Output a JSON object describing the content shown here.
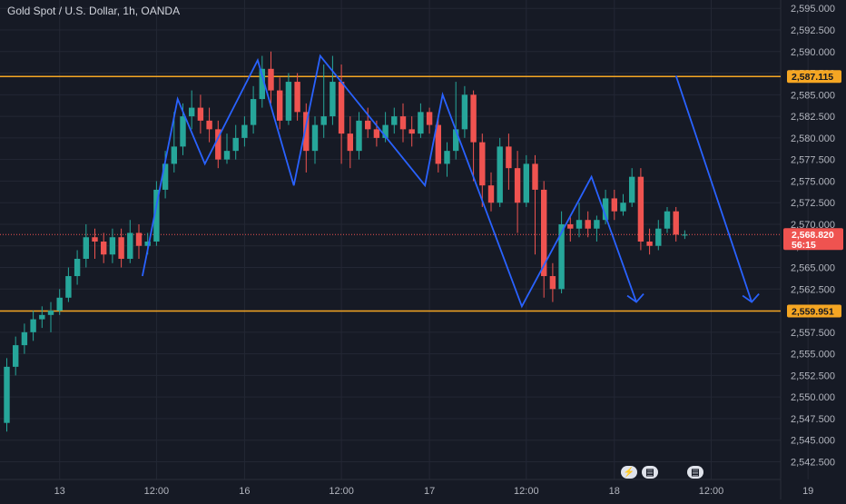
{
  "header": {
    "title": "Gold Spot / U.S. Dollar, 1h, OANDA"
  },
  "colors": {
    "background": "#161a25",
    "grid": "#232734",
    "bull": "#26a69a",
    "bear": "#ef5350",
    "level_line": "#f5a623",
    "pattern": "#2962ff",
    "axis_text": "#b2b5be"
  },
  "chart_data": {
    "type": "candlestick",
    "title": "Gold Spot / U.S. Dollar, 1h, OANDA",
    "ylim": [
      2541.5,
      2595
    ],
    "y_ticks": [
      "2,542.500",
      "2,545.000",
      "2,547.500",
      "2,550.000",
      "2,552.500",
      "2,555.000",
      "2,557.500",
      "2,560.000",
      "2,562.500",
      "2,565.000",
      "2,567.500",
      "2,570.000",
      "2,572.500",
      "2,575.000",
      "2,577.500",
      "2,580.000",
      "2,582.500",
      "2,585.000",
      "2,587.500",
      "2,590.000",
      "2,592.500",
      "2,595.000"
    ],
    "x_ticks": [
      {
        "label": "13",
        "bar": 6
      },
      {
        "label": "12:00",
        "bar": 17
      },
      {
        "label": "16",
        "bar": 27
      },
      {
        "label": "12:00",
        "bar": 38
      },
      {
        "label": "17",
        "bar": 48
      },
      {
        "label": "12:00",
        "bar": 59
      },
      {
        "label": "18",
        "bar": 69
      },
      {
        "label": "12:00",
        "bar": 80
      },
      {
        "label": "19",
        "bar": 91
      }
    ],
    "horizontal_levels": [
      {
        "value": 2587.115,
        "label": "2,587.115"
      },
      {
        "value": 2559.951,
        "label": "2,559.951"
      }
    ],
    "current_price": {
      "value": 2568.82,
      "label": "2,568.820",
      "countdown": "56:15"
    },
    "candles": [
      [
        2547.0,
        2553.5,
        2546.0,
        2554.5
      ],
      [
        2553.5,
        2556.0,
        2552.5,
        2557.0
      ],
      [
        2556.0,
        2557.5,
        2555.0,
        2558.5
      ],
      [
        2557.5,
        2559.0,
        2556.5,
        2560.0
      ],
      [
        2559.0,
        2559.5,
        2558.0,
        2560.5
      ],
      [
        2559.5,
        2560.0,
        2557.5,
        2561.0
      ],
      [
        2560.0,
        2561.5,
        2559.5,
        2562.5
      ],
      [
        2561.5,
        2564.0,
        2561.0,
        2565.0
      ],
      [
        2564.0,
        2566.0,
        2563.0,
        2567.0
      ],
      [
        2566.0,
        2568.5,
        2565.0,
        2570.0
      ],
      [
        2568.5,
        2568.0,
        2566.0,
        2569.5
      ],
      [
        2568.0,
        2566.5,
        2565.5,
        2569.0
      ],
      [
        2566.5,
        2568.5,
        2565.5,
        2569.5
      ],
      [
        2568.5,
        2566.0,
        2565.0,
        2569.5
      ],
      [
        2566.0,
        2569.0,
        2565.5,
        2570.5
      ],
      [
        2569.0,
        2567.5,
        2566.0,
        2570.0
      ],
      [
        2567.5,
        2568.0,
        2566.5,
        2569.0
      ],
      [
        2568.0,
        2574.0,
        2567.5,
        2575.0
      ],
      [
        2574.0,
        2577.0,
        2573.0,
        2578.5
      ],
      [
        2577.0,
        2579.0,
        2576.0,
        2583.0
      ],
      [
        2579.0,
        2582.5,
        2578.0,
        2584.0
      ],
      [
        2582.5,
        2583.5,
        2581.0,
        2585.5
      ],
      [
        2583.5,
        2582.0,
        2580.5,
        2585.0
      ],
      [
        2582.0,
        2581.0,
        2579.5,
        2583.5
      ],
      [
        2581.0,
        2577.5,
        2576.5,
        2582.0
      ],
      [
        2577.5,
        2578.5,
        2577.0,
        2580.5
      ],
      [
        2578.5,
        2580.0,
        2577.5,
        2581.5
      ],
      [
        2580.0,
        2581.5,
        2579.0,
        2582.5
      ],
      [
        2581.5,
        2584.5,
        2580.5,
        2586.0
      ],
      [
        2584.5,
        2588.0,
        2583.5,
        2589.5
      ],
      [
        2588.0,
        2585.5,
        2584.0,
        2590.0
      ],
      [
        2585.5,
        2582.0,
        2581.0,
        2587.0
      ],
      [
        2582.0,
        2586.5,
        2581.5,
        2587.5
      ],
      [
        2586.5,
        2583.0,
        2582.0,
        2587.5
      ],
      [
        2583.0,
        2578.5,
        2576.0,
        2584.0
      ],
      [
        2578.5,
        2581.5,
        2577.0,
        2582.5
      ],
      [
        2581.5,
        2582.5,
        2580.0,
        2588.5
      ],
      [
        2582.5,
        2586.5,
        2581.5,
        2589.5
      ],
      [
        2586.5,
        2580.5,
        2577.0,
        2588.5
      ],
      [
        2580.5,
        2578.5,
        2576.5,
        2582.5
      ],
      [
        2578.5,
        2582.0,
        2577.5,
        2583.0
      ],
      [
        2582.0,
        2581.0,
        2580.0,
        2583.5
      ],
      [
        2581.0,
        2580.0,
        2579.0,
        2582.0
      ],
      [
        2580.0,
        2581.5,
        2579.5,
        2583.0
      ],
      [
        2581.5,
        2582.5,
        2580.5,
        2583.5
      ],
      [
        2582.5,
        2581.0,
        2579.5,
        2584.0
      ],
      [
        2581.0,
        2580.5,
        2579.0,
        2582.5
      ],
      [
        2580.5,
        2583.0,
        2580.0,
        2584.0
      ],
      [
        2583.0,
        2581.5,
        2580.5,
        2583.5
      ],
      [
        2581.5,
        2577.0,
        2576.0,
        2582.5
      ],
      [
        2577.0,
        2578.5,
        2575.5,
        2579.5
      ],
      [
        2578.5,
        2581.0,
        2577.5,
        2586.5
      ],
      [
        2581.0,
        2585.0,
        2580.0,
        2586.0
      ],
      [
        2585.0,
        2579.5,
        2575.0,
        2585.5
      ],
      [
        2579.5,
        2574.5,
        2572.0,
        2580.5
      ],
      [
        2574.5,
        2572.5,
        2571.5,
        2576.0
      ],
      [
        2572.5,
        2579.0,
        2572.0,
        2580.0
      ],
      [
        2579.0,
        2576.5,
        2574.0,
        2580.5
      ],
      [
        2576.5,
        2572.5,
        2569.0,
        2578.5
      ],
      [
        2572.5,
        2577.0,
        2572.0,
        2578.0
      ],
      [
        2577.0,
        2574.0,
        2566.5,
        2578.0
      ],
      [
        2574.0,
        2564.0,
        2561.5,
        2575.0
      ],
      [
        2564.0,
        2562.5,
        2561.0,
        2565.5
      ],
      [
        2562.5,
        2570.0,
        2562.0,
        2571.5
      ],
      [
        2570.0,
        2569.5,
        2568.0,
        2571.0
      ],
      [
        2569.5,
        2570.5,
        2568.5,
        2572.5
      ],
      [
        2570.5,
        2569.5,
        2568.5,
        2571.5
      ],
      [
        2569.5,
        2570.5,
        2568.0,
        2571.0
      ],
      [
        2570.5,
        2573.0,
        2570.0,
        2574.0
      ],
      [
        2573.0,
        2571.5,
        2570.5,
        2574.0
      ],
      [
        2571.5,
        2572.5,
        2571.0,
        2573.5
      ],
      [
        2572.5,
        2575.5,
        2572.0,
        2576.5
      ],
      [
        2575.5,
        2568.0,
        2567.0,
        2576.5
      ],
      [
        2568.0,
        2567.5,
        2566.5,
        2569.5
      ],
      [
        2567.5,
        2569.5,
        2567.0,
        2570.5
      ],
      [
        2569.5,
        2571.5,
        2569.0,
        2572.0
      ],
      [
        2571.5,
        2568.8,
        2568.0,
        2572.0
      ],
      [
        2568.8,
        2568.8,
        2568.3,
        2569.3
      ]
    ],
    "pattern_lines": [
      [
        [
          15.4,
          2564.0
        ],
        [
          19.4,
          2584.5
        ],
        [
          22.5,
          2577.0
        ],
        [
          28.5,
          2589.0
        ],
        [
          32.6,
          2574.5
        ],
        [
          35.6,
          2589.5
        ],
        [
          47.5,
          2574.5
        ],
        [
          49.5,
          2585.0
        ],
        [
          58.5,
          2560.5
        ],
        [
          66.4,
          2575.5
        ],
        [
          71.5,
          2561.0
        ]
      ],
      [
        [
          76.0,
          2587.2
        ],
        [
          84.6,
          2561.0
        ]
      ]
    ],
    "arrowheads": [
      {
        "x": 71.5,
        "y": 2561.0,
        "from": [
          70.2,
          2563.8
        ]
      },
      {
        "x": 84.6,
        "y": 2561.0,
        "from": [
          83.3,
          2563.8
        ]
      }
    ],
    "event_icons": [
      "lightning-icon",
      "us-flag-icon",
      "us-flag-icon"
    ]
  }
}
